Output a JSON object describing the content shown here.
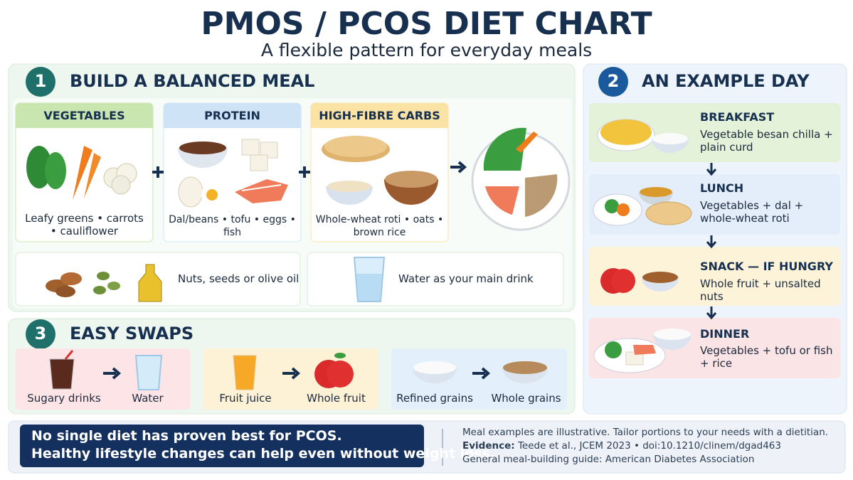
{
  "header": {
    "title": "PMOS / PCOS DIET CHART",
    "subtitle": "A flexible pattern for everyday meals"
  },
  "sections": [
    {
      "number": "1",
      "title": "BUILD A BALANCED MEAL",
      "groups": [
        {
          "title": "VEGETABLES",
          "items": "Leafy greens • carrots • cauliflower"
        },
        {
          "title": "PROTEIN",
          "items": "Dal/beans • tofu • eggs • fish"
        },
        {
          "title": "HIGH-FIBRE CARBS",
          "items": "Whole-wheat roti • oats • brown rice"
        }
      ],
      "extras": [
        "Nuts, seeds or olive oil",
        "Water as your main drink"
      ]
    },
    {
      "number": "2",
      "title": "AN EXAMPLE DAY",
      "meals": [
        {
          "title": "BREAKFAST",
          "items": "Vegetable besan chilla + plain curd"
        },
        {
          "title": "LUNCH",
          "items": "Vegetables + dal + whole-wheat roti"
        },
        {
          "title": "SNACK — IF HUNGRY",
          "items": "Whole fruit + unsalted nuts"
        },
        {
          "title": "DINNER",
          "items": "Vegetables + tofu or fish + rice"
        }
      ]
    },
    {
      "number": "3",
      "title": "EASY SWAPS",
      "swaps": [
        {
          "from": "Sugary drinks",
          "to": "Water"
        },
        {
          "from": "Fruit juice",
          "to": "Whole fruit"
        },
        {
          "from": "Refined grains",
          "to": "Whole grains"
        }
      ]
    }
  ],
  "footer": {
    "note": [
      "No single diet has proven best for PCOS.",
      "Healthy lifestyle changes can help even without weight loss."
    ],
    "disclaimer": "Meal examples are illustrative. Tailor portions to your needs with a dietitian.",
    "evidence": {
      "label": "Evidence:",
      "text": "Teede et al., JCEM 2023 • doi:10.1210/clinem/dgad463"
    },
    "guide": "General meal-building guide: American Diabetes Association"
  }
}
